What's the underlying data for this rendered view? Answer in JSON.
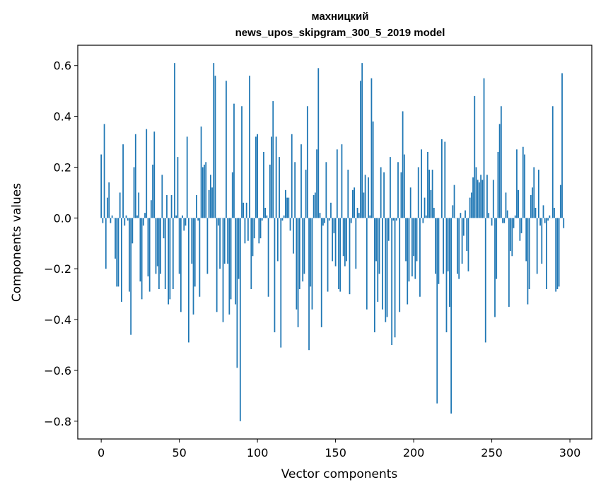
{
  "chart_data": {
    "type": "bar",
    "title_lines": [
      "махницкий",
      "news_upos_skipgram_300_5_2019 model"
    ],
    "xlabel": "Vector components",
    "ylabel": "Components values",
    "xlim": [
      -15,
      314
    ],
    "ylim": [
      -0.87,
      0.68
    ],
    "xticks": [
      0,
      50,
      100,
      150,
      200,
      250,
      300
    ],
    "xtick_labels": [
      "0",
      "50",
      "100",
      "150",
      "200",
      "250",
      "300"
    ],
    "yticks": [
      -0.8,
      -0.6,
      -0.4,
      -0.2,
      0.0,
      0.2,
      0.4,
      0.6
    ],
    "ytick_labels": [
      "−0.8",
      "−0.6",
      "−0.4",
      "−0.2",
      "0.0",
      "0.2",
      "0.4",
      "0.6"
    ],
    "grid": false,
    "bar_color": "#1f77b4",
    "values": [
      0.25,
      -0.02,
      0.37,
      -0.2,
      0.08,
      0.14,
      -0.02,
      0.01,
      0.0,
      -0.16,
      -0.27,
      -0.27,
      0.1,
      -0.33,
      0.29,
      -0.03,
      0.01,
      -0.01,
      -0.29,
      -0.46,
      -0.1,
      0.2,
      0.33,
      0.01,
      0.1,
      -0.25,
      -0.32,
      -0.03,
      0.02,
      0.35,
      -0.23,
      -0.29,
      0.07,
      0.21,
      0.34,
      -0.22,
      -0.19,
      -0.28,
      -0.22,
      0.17,
      -0.08,
      -0.28,
      0.09,
      -0.34,
      -0.32,
      0.09,
      -0.28,
      0.61,
      0.01,
      0.24,
      -0.22,
      -0.37,
      0.01,
      -0.05,
      -0.03,
      0.32,
      -0.49,
      0.0,
      -0.18,
      -0.38,
      -0.27,
      0.09,
      -0.01,
      -0.31,
      0.36,
      0.2,
      0.21,
      0.22,
      -0.22,
      0.11,
      0.17,
      0.12,
      0.61,
      0.56,
      -0.37,
      -0.03,
      -0.2,
      0.0,
      -0.41,
      -0.18,
      0.54,
      -0.18,
      -0.38,
      -0.32,
      0.18,
      0.45,
      -0.34,
      -0.59,
      -0.24,
      -0.8,
      0.44,
      0.06,
      -0.1,
      0.06,
      -0.09,
      0.56,
      -0.28,
      -0.15,
      -0.08,
      0.32,
      0.33,
      -0.1,
      -0.08,
      -0.01,
      0.26,
      0.04,
      0.01,
      -0.31,
      0.21,
      0.32,
      0.46,
      -0.45,
      0.32,
      -0.17,
      0.24,
      -0.51,
      -0.01,
      0.01,
      0.11,
      0.08,
      0.08,
      -0.05,
      0.33,
      -0.14,
      0.22,
      -0.36,
      -0.43,
      -0.28,
      0.29,
      -0.25,
      -0.22,
      0.19,
      0.44,
      -0.52,
      -0.27,
      -0.36,
      0.09,
      0.1,
      0.27,
      0.59,
      0.02,
      -0.43,
      -0.03,
      -0.02,
      0.22,
      -0.29,
      -0.01,
      0.06,
      -0.17,
      -0.06,
      -0.19,
      0.27,
      -0.28,
      -0.29,
      0.29,
      -0.15,
      -0.19,
      -0.17,
      0.19,
      -0.3,
      -0.02,
      0.11,
      0.12,
      -0.2,
      0.04,
      0.02,
      0.54,
      0.61,
      0.1,
      0.17,
      -0.36,
      0.16,
      0.01,
      0.55,
      0.38,
      -0.45,
      -0.17,
      -0.33,
      -0.22,
      0.2,
      -0.36,
      0.18,
      -0.41,
      -0.39,
      -0.09,
      0.24,
      -0.5,
      -0.01,
      -0.47,
      -0.01,
      0.22,
      -0.37,
      0.18,
      0.42,
      0.25,
      -0.17,
      -0.34,
      -0.25,
      0.12,
      -0.23,
      -0.15,
      -0.24,
      -0.17,
      0.2,
      -0.31,
      0.27,
      -0.02,
      0.08,
      0.01,
      0.26,
      0.19,
      0.11,
      0.19,
      0.04,
      -0.22,
      -0.73,
      -0.26,
      0.0,
      0.31,
      -0.22,
      0.3,
      -0.45,
      -0.21,
      -0.35,
      -0.77,
      0.05,
      0.13,
      0.0,
      -0.22,
      -0.24,
      0.02,
      -0.18,
      -0.07,
      0.03,
      -0.13,
      -0.21,
      0.08,
      0.1,
      0.16,
      0.48,
      0.2,
      0.15,
      0.14,
      0.17,
      0.15,
      0.55,
      -0.49,
      0.17,
      0.02,
      0.0,
      -0.03,
      0.15,
      -0.39,
      -0.24,
      0.26,
      0.37,
      0.44,
      -0.02,
      -0.02,
      0.1,
      0.03,
      -0.35,
      -0.13,
      -0.15,
      -0.04,
      0.01,
      0.27,
      0.11,
      -0.09,
      -0.06,
      0.28,
      0.25,
      -0.17,
      -0.34,
      -0.28,
      0.09,
      0.12,
      0.2,
      0.04,
      -0.22,
      0.19,
      -0.03,
      -0.18,
      0.05,
      -0.02,
      -0.28,
      -0.01,
      0.01,
      0.0,
      0.44,
      0.04,
      -0.29,
      -0.28,
      -0.27,
      0.13,
      0.57,
      -0.04
    ]
  }
}
